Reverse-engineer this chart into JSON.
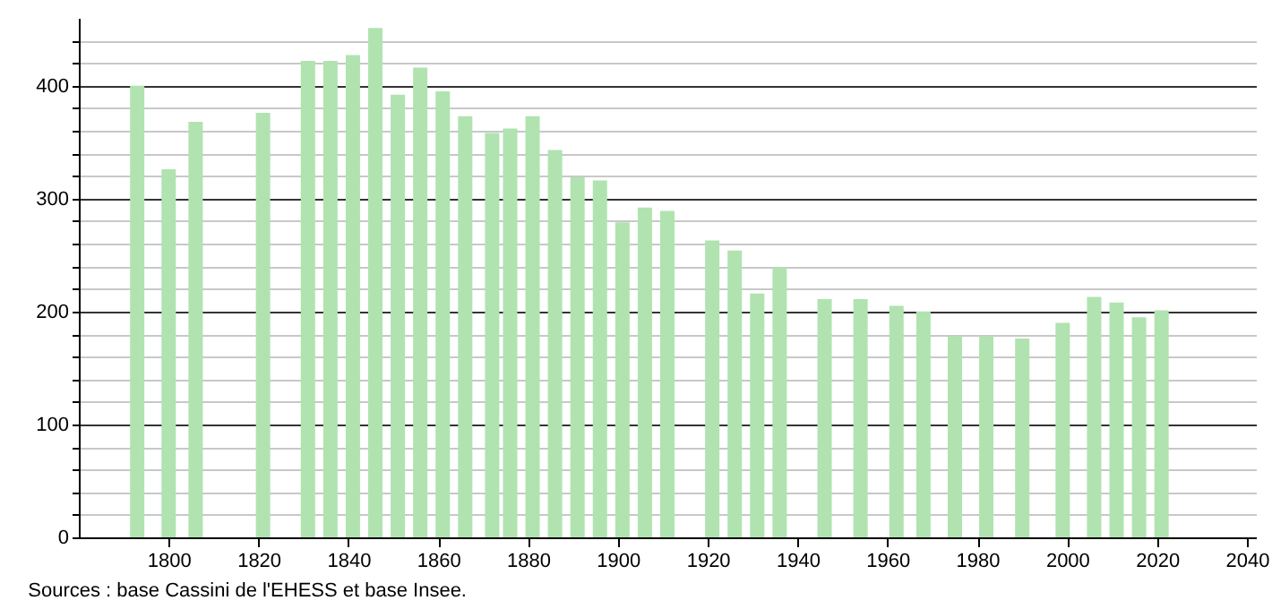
{
  "chart_data": {
    "type": "bar",
    "color": "#b0e3b0",
    "x": [
      1793,
      1800,
      1806,
      1821,
      1831,
      1836,
      1841,
      1846,
      1851,
      1856,
      1861,
      1866,
      1872,
      1876,
      1881,
      1886,
      1891,
      1896,
      1901,
      1906,
      1911,
      1921,
      1926,
      1931,
      1936,
      1946,
      1954,
      1962,
      1968,
      1975,
      1982,
      1990,
      1999,
      2006,
      2011,
      2016,
      2021
    ],
    "values": [
      400,
      326,
      368,
      376,
      422,
      422,
      427,
      451,
      392,
      416,
      395,
      373,
      358,
      362,
      373,
      343,
      319,
      316,
      279,
      292,
      289,
      263,
      254,
      216,
      239,
      211,
      211,
      205,
      200,
      178,
      178,
      176,
      190,
      213,
      208,
      195,
      201
    ],
    "xlim": [
      1780,
      2042
    ],
    "xticks": [
      1800,
      1820,
      1840,
      1860,
      1880,
      1900,
      1920,
      1940,
      1960,
      1980,
      2000,
      2020,
      2040
    ],
    "ylim": [
      0,
      460
    ],
    "yticks": [
      0,
      {
        "value": 20,
        "label": null
      },
      {
        "value": 40,
        "label": null
      },
      {
        "value": 60,
        "label": null
      },
      {
        "value": 80,
        "label": null
      },
      100,
      {
        "value": 120,
        "label": null
      },
      {
        "value": 140,
        "label": null
      },
      {
        "value": 160,
        "label": null
      },
      {
        "value": 180,
        "label": null
      },
      200,
      {
        "value": 220,
        "label": null
      },
      {
        "value": 240,
        "label": null
      },
      {
        "value": 260,
        "label": null
      },
      {
        "value": 280,
        "label": null
      },
      300,
      {
        "value": 320,
        "label": null
      },
      {
        "value": 340,
        "label": null
      },
      {
        "value": 360,
        "label": null
      },
      {
        "value": 380,
        "label": null
      },
      400,
      {
        "value": 420,
        "label": null
      },
      {
        "value": 440,
        "label": null
      }
    ],
    "grid": "y",
    "annotations": [
      "Sources : base Cassini de l'EHESS et base Insee."
    ]
  }
}
